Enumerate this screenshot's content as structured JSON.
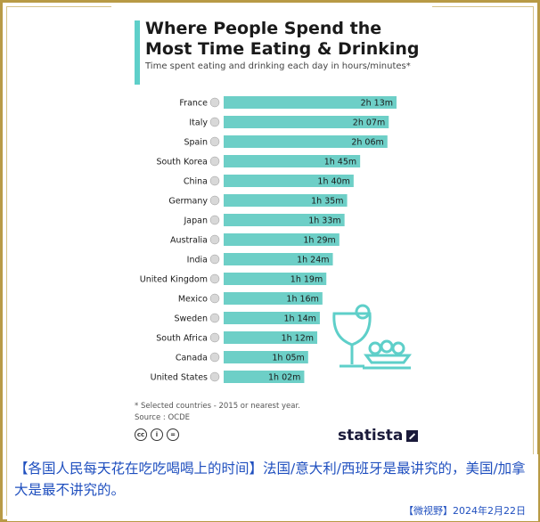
{
  "chart_data": {
    "type": "bar",
    "orientation": "horizontal",
    "title": "Where People Spend the Most Time Eating & Drinking",
    "subtitle": "Time spent eating and drinking each day in hours/minutes*",
    "unit": "minutes per day",
    "categories": [
      "France",
      "Italy",
      "Spain",
      "South Korea",
      "China",
      "Germany",
      "Japan",
      "Australia",
      "India",
      "United Kingdom",
      "Mexico",
      "Sweden",
      "South Africa",
      "Canada",
      "United States"
    ],
    "values": [
      133,
      127,
      126,
      105,
      100,
      95,
      93,
      89,
      84,
      79,
      76,
      74,
      72,
      65,
      62
    ],
    "data_labels": [
      "2h 13m",
      "2h 07m",
      "2h 06m",
      "1h 45m",
      "1h 40m",
      "1h 35m",
      "1h 33m",
      "1h 29m",
      "1h 24m",
      "1h 19m",
      "1h 16m",
      "1h 14m",
      "1h 12m",
      "1h 05m",
      "1h 02m"
    ],
    "bar_color": "#6dcfc7",
    "accent_color": "#5ecfc9",
    "grid": false,
    "legend": "none"
  },
  "footnote": {
    "line1": "* Selected countries - 2015 or nearest year.",
    "line2": "Source : OCDE"
  },
  "brand": "statista",
  "license_icons": [
    "cc-icon",
    "person-icon",
    "equals-icon"
  ],
  "caption": {
    "text": "【各国人民每天花在吃吃喝喝上的时间】法国/意大利/西班牙是最讲究的，美国/加拿大是最不讲究的。",
    "date": "【微视野】2024年2月22日"
  }
}
